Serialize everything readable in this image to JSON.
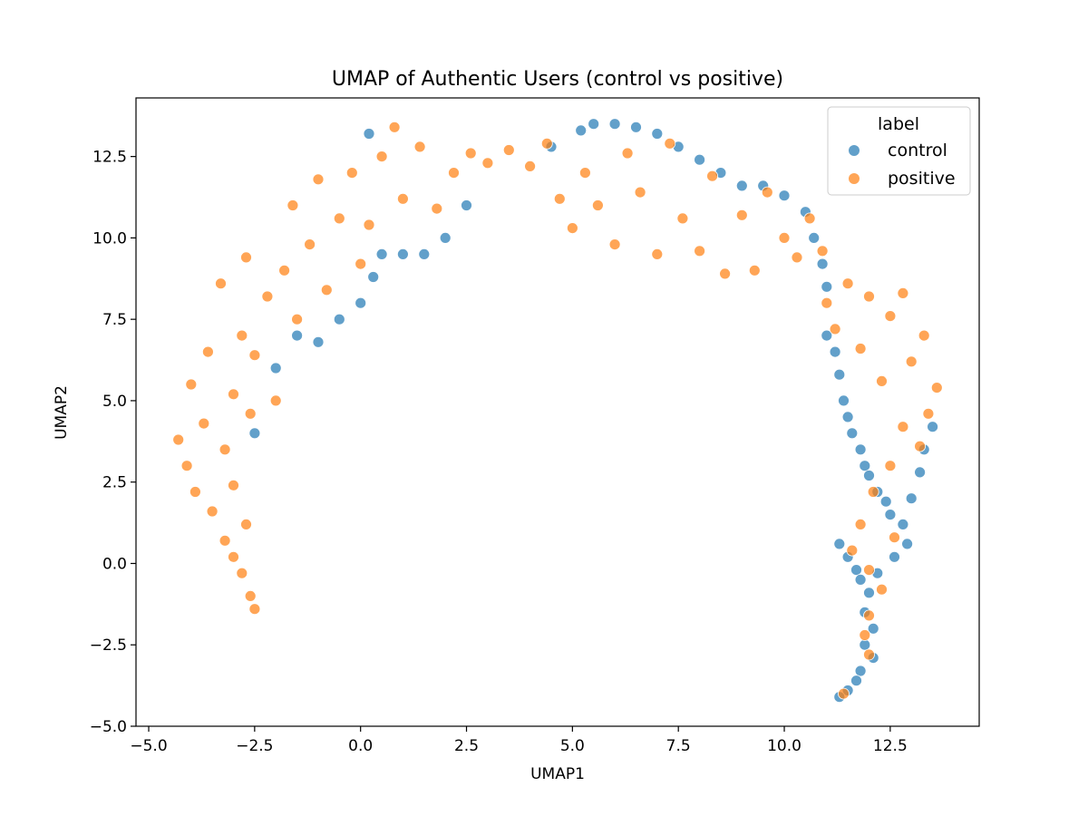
{
  "chart_data": {
    "type": "scatter",
    "title": "UMAP of Authentic Users (control vs positive)",
    "xlabel": "UMAP1",
    "ylabel": "UMAP2",
    "xlim": [
      -5.3,
      14.6
    ],
    "ylim": [
      -5.0,
      14.3
    ],
    "xticks": [
      -5.0,
      -2.5,
      0.0,
      2.5,
      5.0,
      7.5,
      10.0,
      12.5
    ],
    "xtick_labels": [
      "−5.0",
      "−2.5",
      "0.0",
      "2.5",
      "5.0",
      "7.5",
      "10.0",
      "12.5"
    ],
    "yticks": [
      -5.0,
      -2.5,
      0.0,
      2.5,
      5.0,
      7.5,
      10.0,
      12.5
    ],
    "ytick_labels": [
      "−5.0",
      "−2.5",
      "0.0",
      "2.5",
      "5.0",
      "7.5",
      "10.0",
      "12.5"
    ],
    "grid": false,
    "legend": {
      "title": "label",
      "position": "top-right",
      "entries": [
        "control",
        "positive"
      ]
    },
    "series": [
      {
        "name": "control",
        "color": "#1f77b4",
        "alpha": 0.7,
        "points": [
          [
            -2.5,
            4.0
          ],
          [
            -2.0,
            6.0
          ],
          [
            -1.5,
            7.0
          ],
          [
            -1.0,
            6.8
          ],
          [
            -0.5,
            7.5
          ],
          [
            0.0,
            8.0
          ],
          [
            0.3,
            8.8
          ],
          [
            0.5,
            9.5
          ],
          [
            1.0,
            9.5
          ],
          [
            1.5,
            9.5
          ],
          [
            2.0,
            10.0
          ],
          [
            2.5,
            11.0
          ],
          [
            0.2,
            13.2
          ],
          [
            4.5,
            12.8
          ],
          [
            5.2,
            13.3
          ],
          [
            5.5,
            13.5
          ],
          [
            6.0,
            13.5
          ],
          [
            6.5,
            13.4
          ],
          [
            7.0,
            13.2
          ],
          [
            7.5,
            12.8
          ],
          [
            8.0,
            12.4
          ],
          [
            8.5,
            12.0
          ],
          [
            9.0,
            11.6
          ],
          [
            9.5,
            11.6
          ],
          [
            10.0,
            11.3
          ],
          [
            10.5,
            10.8
          ],
          [
            10.7,
            10.0
          ],
          [
            10.9,
            9.2
          ],
          [
            11.0,
            8.5
          ],
          [
            11.0,
            7.0
          ],
          [
            11.2,
            6.5
          ],
          [
            11.3,
            5.8
          ],
          [
            11.4,
            5.0
          ],
          [
            11.5,
            4.5
          ],
          [
            11.6,
            4.0
          ],
          [
            11.8,
            3.5
          ],
          [
            11.9,
            3.0
          ],
          [
            12.0,
            2.7
          ],
          [
            12.2,
            2.2
          ],
          [
            12.4,
            1.9
          ],
          [
            12.5,
            1.5
          ],
          [
            12.8,
            1.2
          ],
          [
            13.0,
            2.0
          ],
          [
            13.2,
            2.8
          ],
          [
            13.5,
            4.2
          ],
          [
            13.3,
            3.5
          ],
          [
            11.3,
            0.6
          ],
          [
            11.5,
            0.2
          ],
          [
            11.7,
            -0.2
          ],
          [
            11.8,
            -0.5
          ],
          [
            12.0,
            -0.9
          ],
          [
            12.2,
            -0.3
          ],
          [
            12.6,
            0.2
          ],
          [
            12.9,
            0.6
          ],
          [
            11.9,
            -1.5
          ],
          [
            12.1,
            -2.0
          ],
          [
            11.9,
            -2.5
          ],
          [
            12.1,
            -2.9
          ],
          [
            11.8,
            -3.3
          ],
          [
            11.7,
            -3.6
          ],
          [
            11.5,
            -3.9
          ],
          [
            11.3,
            -4.1
          ]
        ]
      },
      {
        "name": "positive",
        "color": "#ff7f0e",
        "alpha": 0.7,
        "points": [
          [
            -4.3,
            3.8
          ],
          [
            -4.1,
            3.0
          ],
          [
            -4.0,
            5.5
          ],
          [
            -3.9,
            2.2
          ],
          [
            -3.7,
            4.3
          ],
          [
            -3.5,
            1.6
          ],
          [
            -3.6,
            6.5
          ],
          [
            -3.3,
            8.6
          ],
          [
            -3.2,
            3.5
          ],
          [
            -3.0,
            5.2
          ],
          [
            -3.0,
            2.4
          ],
          [
            -2.8,
            7.0
          ],
          [
            -2.7,
            9.4
          ],
          [
            -2.6,
            4.6
          ],
          [
            -2.5,
            6.4
          ],
          [
            -3.2,
            0.7
          ],
          [
            -3.0,
            0.2
          ],
          [
            -2.8,
            -0.3
          ],
          [
            -2.6,
            -1.0
          ],
          [
            -2.5,
            -1.4
          ],
          [
            -2.7,
            1.2
          ],
          [
            -2.2,
            8.2
          ],
          [
            -2.0,
            5.0
          ],
          [
            -1.8,
            9.0
          ],
          [
            -1.6,
            11.0
          ],
          [
            -1.5,
            7.5
          ],
          [
            -1.2,
            9.8
          ],
          [
            -1.0,
            11.8
          ],
          [
            -0.8,
            8.4
          ],
          [
            -0.5,
            10.6
          ],
          [
            -0.2,
            12.0
          ],
          [
            0.0,
            9.2
          ],
          [
            0.2,
            10.4
          ],
          [
            0.5,
            12.5
          ],
          [
            0.8,
            13.4
          ],
          [
            1.0,
            11.2
          ],
          [
            1.4,
            12.8
          ],
          [
            1.8,
            10.9
          ],
          [
            2.2,
            12.0
          ],
          [
            2.6,
            12.6
          ],
          [
            3.0,
            12.3
          ],
          [
            3.5,
            12.7
          ],
          [
            4.0,
            12.2
          ],
          [
            4.4,
            12.9
          ],
          [
            4.7,
            11.2
          ],
          [
            5.0,
            10.3
          ],
          [
            5.3,
            12.0
          ],
          [
            5.6,
            11.0
          ],
          [
            6.0,
            9.8
          ],
          [
            6.3,
            12.6
          ],
          [
            6.6,
            11.4
          ],
          [
            7.0,
            9.5
          ],
          [
            7.3,
            12.9
          ],
          [
            7.6,
            10.6
          ],
          [
            8.0,
            9.6
          ],
          [
            8.3,
            11.9
          ],
          [
            8.6,
            8.9
          ],
          [
            9.0,
            10.7
          ],
          [
            9.3,
            9.0
          ],
          [
            9.6,
            11.4
          ],
          [
            10.0,
            10.0
          ],
          [
            10.3,
            9.4
          ],
          [
            10.6,
            10.6
          ],
          [
            10.9,
            9.6
          ],
          [
            11.0,
            8.0
          ],
          [
            11.2,
            7.2
          ],
          [
            11.5,
            8.6
          ],
          [
            11.8,
            6.6
          ],
          [
            12.0,
            8.2
          ],
          [
            12.3,
            5.6
          ],
          [
            12.5,
            7.6
          ],
          [
            12.8,
            8.3
          ],
          [
            13.0,
            6.2
          ],
          [
            13.3,
            7.0
          ],
          [
            13.6,
            5.4
          ],
          [
            13.4,
            4.6
          ],
          [
            12.8,
            4.2
          ],
          [
            13.2,
            3.6
          ],
          [
            12.5,
            3.0
          ],
          [
            12.1,
            2.2
          ],
          [
            11.8,
            1.2
          ],
          [
            12.6,
            0.8
          ],
          [
            12.0,
            -0.2
          ],
          [
            11.6,
            0.4
          ],
          [
            12.3,
            -0.8
          ],
          [
            12.0,
            -1.6
          ],
          [
            11.9,
            -2.2
          ],
          [
            12.0,
            -2.8
          ],
          [
            11.4,
            -4.0
          ]
        ]
      }
    ]
  }
}
